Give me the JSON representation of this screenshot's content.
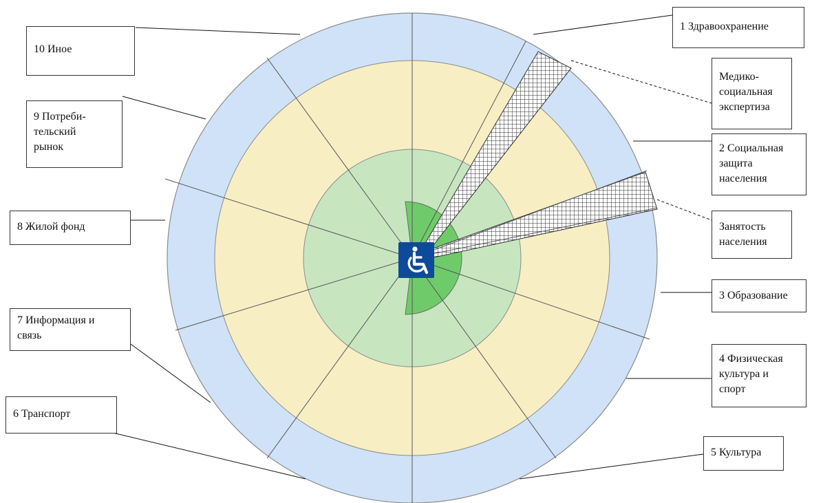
{
  "colors": {
    "outer_ring": "#cfe2f7",
    "middle_ring": "#f8eec4",
    "inner_ring": "#c7e6c0",
    "core_sector": "#6fcb6a",
    "spoke": "#555555",
    "badge": "#0e4a9c",
    "badge_symbol": "#ffffff",
    "box_border": "#333333"
  },
  "center_icon": "wheelchair-accessibility-icon",
  "labels": {
    "l1": [
      "1 Здравоохранение"
    ],
    "med": [
      "Медико-",
      "социальная",
      "экспертиза"
    ],
    "l2": [
      "2 Социальная",
      "защита",
      "населения"
    ],
    "zan": [
      "Занятость",
      "населения"
    ],
    "l3": [
      "3 Образование"
    ],
    "l4": [
      "4 Физическая",
      "культура и",
      "спорт"
    ],
    "l5": [
      "5 Культура"
    ],
    "l6": [
      "6 Транспорт"
    ],
    "l7": [
      "7 Информация и",
      "связь"
    ],
    "l8": [
      "8 Жилой фонд"
    ],
    "l9": [
      "9 Потреби-",
      "тельский",
      "рынок"
    ],
    "l10": [
      "10 Иное"
    ]
  }
}
